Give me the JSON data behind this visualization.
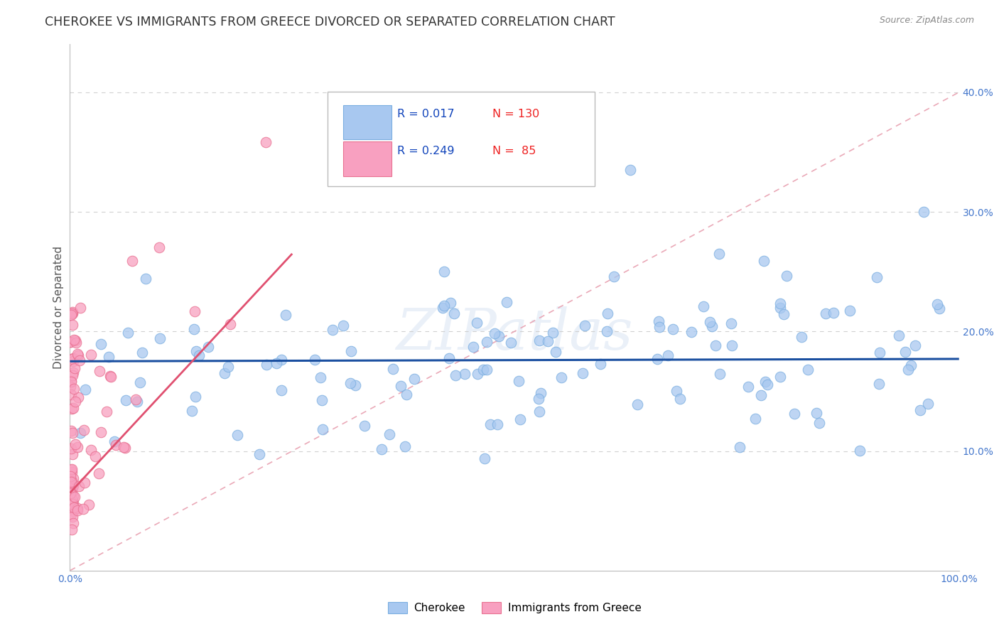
{
  "title": "CHEROKEE VS IMMIGRANTS FROM GREECE DIVORCED OR SEPARATED CORRELATION CHART",
  "source": "Source: ZipAtlas.com",
  "ylabel": "Divorced or Separated",
  "xlim": [
    0,
    1.0
  ],
  "ylim": [
    0,
    0.44
  ],
  "legend_cherokee_R": "0.017",
  "legend_cherokee_N": "130",
  "legend_greece_R": "0.249",
  "legend_greece_N": "85",
  "cherokee_color": "#a8c8f0",
  "cherokee_edge": "#7aaee0",
  "greece_color": "#f8a0c0",
  "greece_edge": "#e87090",
  "trend_cherokee_color": "#1a4fa0",
  "trend_greece_color": "#e05070",
  "diagonal_color": "#e8a0b0",
  "watermark": "ZIPatlas",
  "background_color": "#ffffff",
  "grid_color": "#cccccc",
  "title_fontsize": 12.5,
  "axis_label_fontsize": 11,
  "cherokee_trend_y_intercept": 0.175,
  "cherokee_trend_slope": 0.002,
  "greece_trend_y_intercept": 0.065,
  "greece_trend_slope": 0.8
}
